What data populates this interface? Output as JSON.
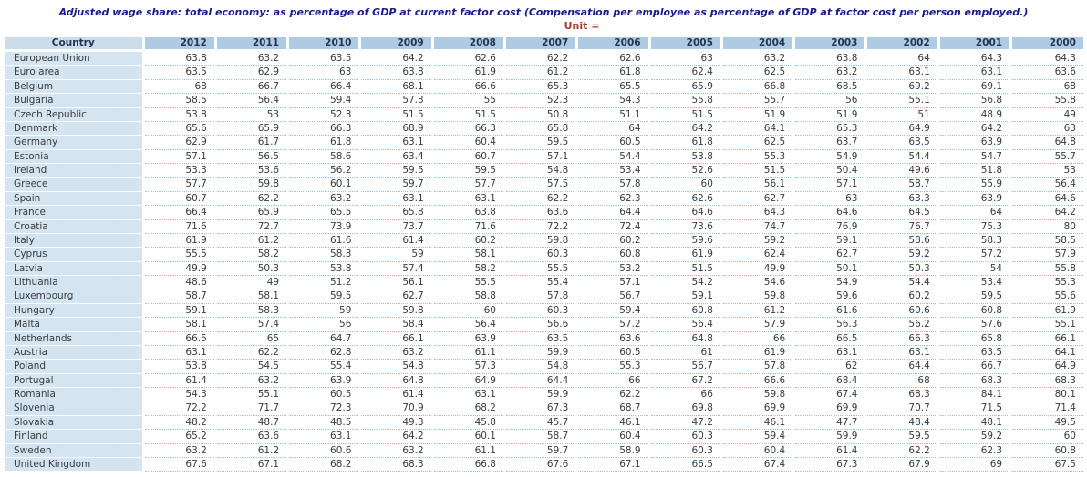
{
  "title": "Adjusted wage share: total economy: as percentage of GDP at current factor cost (Compensation per employee as percentage of GDP at factor cost per person employed.)",
  "unit_label": "Unit =",
  "colors": {
    "title_text": "#1b1b8e",
    "unit_text": "#a63d2b",
    "year_header_bg": "#aecbe3",
    "country_header_bg": "#cbdcea",
    "country_column_bg": "#d5e4f1",
    "data_text": "#3b3b3b",
    "row_divider": "#9fbfd8"
  },
  "chart_data": {
    "type": "table",
    "title": "Adjusted wage share: total economy: as percentage of GDP at current factor cost (Compensation per employee as percentage of GDP at factor cost per person employed.)",
    "columns": [
      "Country",
      "2012",
      "2011",
      "2010",
      "2009",
      "2008",
      "2007",
      "2006",
      "2005",
      "2004",
      "2003",
      "2002",
      "2001",
      "2000"
    ],
    "rows": [
      [
        "European Union",
        63.8,
        63.2,
        63.5,
        64.2,
        62.6,
        62.2,
        62.6,
        63,
        63.2,
        63.8,
        64,
        64.3,
        64.3
      ],
      [
        "Euro area",
        63.5,
        62.9,
        63,
        63.8,
        61.9,
        61.2,
        61.8,
        62.4,
        62.5,
        63.2,
        63.1,
        63.1,
        63.6
      ],
      [
        "Belgium",
        68,
        66.7,
        66.4,
        68.1,
        66.6,
        65.3,
        65.5,
        65.9,
        66.8,
        68.5,
        69.2,
        69.1,
        68
      ],
      [
        "Bulgaria",
        58.5,
        56.4,
        59.4,
        57.3,
        55,
        52.3,
        54.3,
        55.8,
        55.7,
        56,
        55.1,
        56.8,
        55.8
      ],
      [
        "Czech Republic",
        53.8,
        53,
        52.3,
        51.5,
        51.5,
        50.8,
        51.1,
        51.5,
        51.9,
        51.9,
        51,
        48.9,
        49
      ],
      [
        "Denmark",
        65.6,
        65.9,
        66.3,
        68.9,
        66.3,
        65.8,
        64,
        64.2,
        64.1,
        65.3,
        64.9,
        64.2,
        63
      ],
      [
        "Germany",
        62.9,
        61.7,
        61.8,
        63.1,
        60.4,
        59.5,
        60.5,
        61.8,
        62.5,
        63.7,
        63.5,
        63.9,
        64.8
      ],
      [
        "Estonia",
        57.1,
        56.5,
        58.6,
        63.4,
        60.7,
        57.1,
        54.4,
        53.8,
        55.3,
        54.9,
        54.4,
        54.7,
        55.7
      ],
      [
        "Ireland",
        53.3,
        53.6,
        56.2,
        59.5,
        59.5,
        54.8,
        53.4,
        52.6,
        51.5,
        50.4,
        49.6,
        51.8,
        53
      ],
      [
        "Greece",
        57.7,
        59.8,
        60.1,
        59.7,
        57.7,
        57.5,
        57.8,
        60,
        56.1,
        57.1,
        58.7,
        55.9,
        56.4
      ],
      [
        "Spain",
        60.7,
        62.2,
        63.2,
        63.1,
        63.1,
        62.2,
        62.3,
        62.6,
        62.7,
        63,
        63.3,
        63.9,
        64.6
      ],
      [
        "France",
        66.4,
        65.9,
        65.5,
        65.8,
        63.8,
        63.6,
        64.4,
        64.6,
        64.3,
        64.6,
        64.5,
        64,
        64.2
      ],
      [
        "Croatia",
        71.6,
        72.7,
        73.9,
        73.7,
        71.6,
        72.2,
        72.4,
        73.6,
        74.7,
        76.9,
        76.7,
        75.3,
        80
      ],
      [
        "Italy",
        61.9,
        61.2,
        61.6,
        61.4,
        60.2,
        59.8,
        60.2,
        59.6,
        59.2,
        59.1,
        58.6,
        58.3,
        58.5
      ],
      [
        "Cyprus",
        55.5,
        58.2,
        58.3,
        59,
        58.1,
        60.3,
        60.8,
        61.9,
        62.4,
        62.7,
        59.2,
        57.2,
        57.9
      ],
      [
        "Latvia",
        49.9,
        50.3,
        53.8,
        57.4,
        58.2,
        55.5,
        53.2,
        51.5,
        49.9,
        50.1,
        50.3,
        54,
        55.8
      ],
      [
        "Lithuania",
        48.6,
        49,
        51.2,
        56.1,
        55.5,
        55.4,
        57.1,
        54.2,
        54.6,
        54.9,
        54.4,
        53.4,
        55.3
      ],
      [
        "Luxembourg",
        58.7,
        58.1,
        59.5,
        62.7,
        58.8,
        57.8,
        56.7,
        59.1,
        59.8,
        59.6,
        60.2,
        59.5,
        55.6
      ],
      [
        "Hungary",
        59.1,
        58.3,
        59,
        59.8,
        60,
        60.3,
        59.4,
        60.8,
        61.2,
        61.6,
        60.6,
        60.8,
        61.9
      ],
      [
        "Malta",
        58.1,
        57.4,
        56,
        58.4,
        56.4,
        56.6,
        57.2,
        56.4,
        57.9,
        56.3,
        56.2,
        57.6,
        55.1
      ],
      [
        "Netherlands",
        66.5,
        65,
        64.7,
        66.1,
        63.9,
        63.5,
        63.6,
        64.8,
        66,
        66.5,
        66.3,
        65.8,
        66.1
      ],
      [
        "Austria",
        63.1,
        62.2,
        62.8,
        63.2,
        61.1,
        59.9,
        60.5,
        61,
        61.9,
        63.1,
        63.1,
        63.5,
        64.1
      ],
      [
        "Poland",
        53.8,
        54.5,
        55.4,
        54.8,
        57.3,
        54.8,
        55.3,
        56.7,
        57.8,
        62,
        64.4,
        66.7,
        64.9
      ],
      [
        "Portugal",
        61.4,
        63.2,
        63.9,
        64.8,
        64.9,
        64.4,
        66,
        67.2,
        66.6,
        68.4,
        68,
        68.3,
        68.3
      ],
      [
        "Romania",
        54.3,
        55.1,
        60.5,
        61.4,
        63.1,
        59.9,
        62.2,
        66,
        59.8,
        67.4,
        68.3,
        84.1,
        80.1
      ],
      [
        "Slovenia",
        72.2,
        71.7,
        72.3,
        70.9,
        68.2,
        67.3,
        68.7,
        69.8,
        69.9,
        69.9,
        70.7,
        71.5,
        71.4
      ],
      [
        "Slovakia",
        48.2,
        48.7,
        48.5,
        49.3,
        45.8,
        45.7,
        46.1,
        47.2,
        46.1,
        47.7,
        48.4,
        48.1,
        49.5
      ],
      [
        "Finland",
        65.2,
        63.6,
        63.1,
        64.2,
        60.1,
        58.7,
        60.4,
        60.3,
        59.4,
        59.9,
        59.5,
        59.2,
        60
      ],
      [
        "Sweden",
        63.2,
        61.2,
        60.6,
        63.2,
        61.1,
        59.7,
        58.9,
        60.3,
        60.4,
        61.4,
        62.2,
        62.3,
        60.8
      ],
      [
        "United Kingdom",
        67.6,
        67.1,
        68.2,
        68.3,
        66.8,
        67.6,
        67.1,
        66.5,
        67.4,
        67.3,
        67.9,
        69,
        67.5
      ]
    ]
  }
}
